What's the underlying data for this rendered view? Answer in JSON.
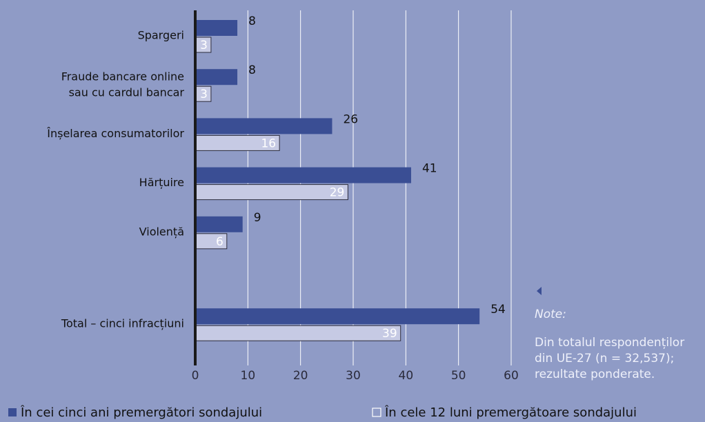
{
  "chart_data": {
    "type": "bar",
    "orientation": "horizontal",
    "categories": [
      "Spargeri",
      "Fraude bancare online\nsau cu cardul bancar",
      "Înșelarea consumatorilor",
      "Hărțuire",
      "Violență",
      null,
      "Total – cinci infracțiuni"
    ],
    "series": [
      {
        "name": "În cei cinci ani premergători sondajului",
        "color": "#3a4e94",
        "values": [
          8,
          8,
          26,
          41,
          9,
          null,
          54
        ]
      },
      {
        "name": "În cele 12 luni premergătoare sondajului",
        "color": "#c6cae4",
        "values": [
          3,
          3,
          16,
          29,
          6,
          null,
          39
        ]
      }
    ],
    "xlim": [
      0,
      60
    ],
    "xticks": [
      0,
      10,
      20,
      30,
      40,
      50,
      60
    ],
    "grid": true,
    "note_title": "Note:",
    "note_lines": [
      "Din totalul respondenților",
      "din UE-27 (n = 32,537);",
      "rezultate ponderate."
    ]
  }
}
